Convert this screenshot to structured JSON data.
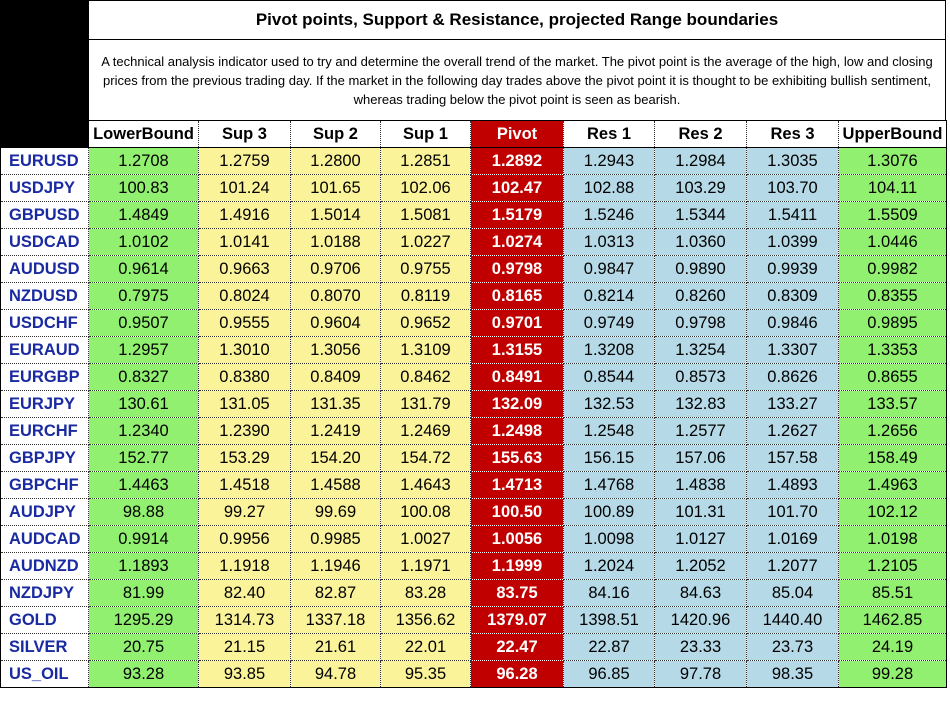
{
  "title": "Pivot points, Support & Resistance, projected Range boundaries",
  "description": "A technical analysis indicator used to try and determine the overall trend of the market. The pivot point is the average of the high, low and closing prices from the previous trading day.  If the market in the following day trades above the pivot point it is thought to be exhibiting bullish sentiment, whereas trading below the pivot point is seen as bearish.",
  "colors": {
    "bound": "#92f070",
    "support": "#fbf39a",
    "pivot": "#c00000",
    "resistance": "#b5d9e6",
    "symbol_text": "#1a2aa0"
  },
  "columns": [
    "LowerBound",
    "Sup 3",
    "Sup 2",
    "Sup 1",
    "Pivot",
    "Res 1",
    "Res 2",
    "Res 3",
    "UpperBound"
  ],
  "rows": [
    {
      "symbol": "EURUSD",
      "values": [
        "1.2708",
        "1.2759",
        "1.2800",
        "1.2851",
        "1.2892",
        "1.2943",
        "1.2984",
        "1.3035",
        "1.3076"
      ]
    },
    {
      "symbol": "USDJPY",
      "values": [
        "100.83",
        "101.24",
        "101.65",
        "102.06",
        "102.47",
        "102.88",
        "103.29",
        "103.70",
        "104.11"
      ]
    },
    {
      "symbol": "GBPUSD",
      "values": [
        "1.4849",
        "1.4916",
        "1.5014",
        "1.5081",
        "1.5179",
        "1.5246",
        "1.5344",
        "1.5411",
        "1.5509"
      ]
    },
    {
      "symbol": "USDCAD",
      "values": [
        "1.0102",
        "1.0141",
        "1.0188",
        "1.0227",
        "1.0274",
        "1.0313",
        "1.0360",
        "1.0399",
        "1.0446"
      ]
    },
    {
      "symbol": "AUDUSD",
      "values": [
        "0.9614",
        "0.9663",
        "0.9706",
        "0.9755",
        "0.9798",
        "0.9847",
        "0.9890",
        "0.9939",
        "0.9982"
      ]
    },
    {
      "symbol": "NZDUSD",
      "values": [
        "0.7975",
        "0.8024",
        "0.8070",
        "0.8119",
        "0.8165",
        "0.8214",
        "0.8260",
        "0.8309",
        "0.8355"
      ]
    },
    {
      "symbol": "USDCHF",
      "values": [
        "0.9507",
        "0.9555",
        "0.9604",
        "0.9652",
        "0.9701",
        "0.9749",
        "0.9798",
        "0.9846",
        "0.9895"
      ]
    },
    {
      "symbol": "EURAUD",
      "values": [
        "1.2957",
        "1.3010",
        "1.3056",
        "1.3109",
        "1.3155",
        "1.3208",
        "1.3254",
        "1.3307",
        "1.3353"
      ]
    },
    {
      "symbol": "EURGBP",
      "values": [
        "0.8327",
        "0.8380",
        "0.8409",
        "0.8462",
        "0.8491",
        "0.8544",
        "0.8573",
        "0.8626",
        "0.8655"
      ]
    },
    {
      "symbol": "EURJPY",
      "values": [
        "130.61",
        "131.05",
        "131.35",
        "131.79",
        "132.09",
        "132.53",
        "132.83",
        "133.27",
        "133.57"
      ]
    },
    {
      "symbol": "EURCHF",
      "values": [
        "1.2340",
        "1.2390",
        "1.2419",
        "1.2469",
        "1.2498",
        "1.2548",
        "1.2577",
        "1.2627",
        "1.2656"
      ]
    },
    {
      "symbol": "GBPJPY",
      "values": [
        "152.77",
        "153.29",
        "154.20",
        "154.72",
        "155.63",
        "156.15",
        "157.06",
        "157.58",
        "158.49"
      ]
    },
    {
      "symbol": "GBPCHF",
      "values": [
        "1.4463",
        "1.4518",
        "1.4588",
        "1.4643",
        "1.4713",
        "1.4768",
        "1.4838",
        "1.4893",
        "1.4963"
      ]
    },
    {
      "symbol": "AUDJPY",
      "values": [
        "98.88",
        "99.27",
        "99.69",
        "100.08",
        "100.50",
        "100.89",
        "101.31",
        "101.70",
        "102.12"
      ]
    },
    {
      "symbol": "AUDCAD",
      "values": [
        "0.9914",
        "0.9956",
        "0.9985",
        "1.0027",
        "1.0056",
        "1.0098",
        "1.0127",
        "1.0169",
        "1.0198"
      ]
    },
    {
      "symbol": "AUDNZD",
      "values": [
        "1.1893",
        "1.1918",
        "1.1946",
        "1.1971",
        "1.1999",
        "1.2024",
        "1.2052",
        "1.2077",
        "1.2105"
      ]
    },
    {
      "symbol": "NZDJPY",
      "values": [
        "81.99",
        "82.40",
        "82.87",
        "83.28",
        "83.75",
        "84.16",
        "84.63",
        "85.04",
        "85.51"
      ]
    },
    {
      "symbol": "GOLD",
      "values": [
        "1295.29",
        "1314.73",
        "1337.18",
        "1356.62",
        "1379.07",
        "1398.51",
        "1420.96",
        "1440.40",
        "1462.85"
      ]
    },
    {
      "symbol": "SILVER",
      "values": [
        "20.75",
        "21.15",
        "21.61",
        "22.01",
        "22.47",
        "22.87",
        "23.33",
        "23.73",
        "24.19"
      ]
    },
    {
      "symbol": "US_OIL",
      "values": [
        "93.28",
        "93.85",
        "94.78",
        "95.35",
        "96.28",
        "96.85",
        "97.78",
        "98.35",
        "99.28"
      ]
    }
  ]
}
